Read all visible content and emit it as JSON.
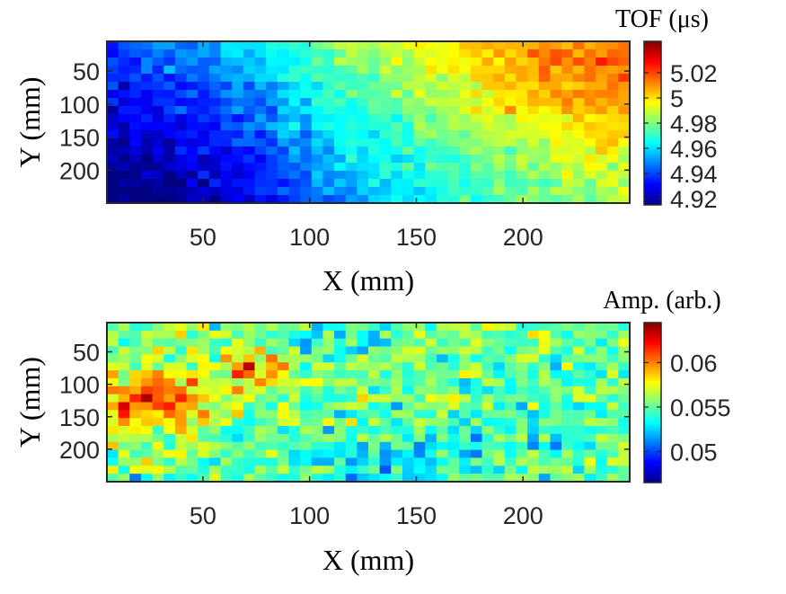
{
  "chart_data": [
    {
      "type": "heatmap",
      "title": "",
      "xlabel": "X (mm)",
      "ylabel": "Y (mm)",
      "colorbar_label": "TOF (μs)",
      "xlim": [
        5,
        250
      ],
      "ylim": [
        5,
        250
      ],
      "y_direction": "reversed",
      "xticks": [
        50,
        100,
        150,
        200
      ],
      "yticks": [
        50,
        100,
        150,
        200
      ],
      "clim": [
        4.915,
        5.045
      ],
      "colorbar_ticks": [
        4.92,
        4.94,
        4.96,
        4.98,
        5,
        5.02
      ],
      "colorbar_tick_labels": [
        "4.92",
        "4.94",
        "4.96",
        "4.98",
        "5",
        "5.02"
      ],
      "colormap": "jet",
      "grid": "noisy 46x20 grid",
      "trend": "low values (~4.93) at left and lower-left, rising to high values (~5.03) at upper-right",
      "value_range": [
        4.92,
        5.04
      ]
    },
    {
      "type": "heatmap",
      "title": "",
      "xlabel": "X (mm)",
      "ylabel": "Y (mm)",
      "colorbar_label": "Amp. (arb.)",
      "xlim": [
        5,
        250
      ],
      "ylim": [
        5,
        250
      ],
      "y_direction": "reversed",
      "xticks": [
        50,
        100,
        150,
        200
      ],
      "yticks": [
        50,
        100,
        150,
        200
      ],
      "clim": [
        0.0465,
        0.0645
      ],
      "colorbar_ticks": [
        0.05,
        0.055,
        0.06
      ],
      "colorbar_tick_labels": [
        "0.05",
        "0.055",
        "0.06"
      ],
      "colormap": "jet",
      "grid": "noisy 46x20 grid",
      "trend": "mostly mid values (~0.055); higher (~0.062) near left at Y 75-150, lower patches at centre-bottom",
      "value_range": [
        0.047,
        0.064
      ]
    }
  ]
}
